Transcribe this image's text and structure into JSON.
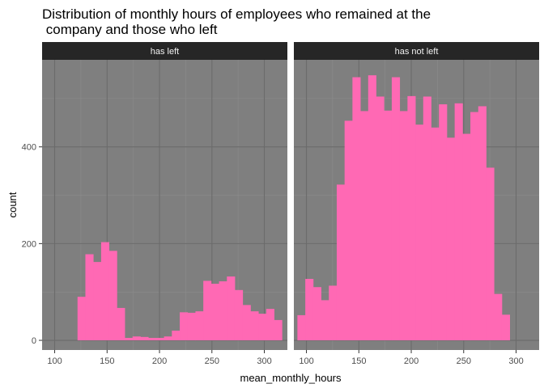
{
  "chart_data": {
    "type": "bar",
    "subtype": "faceted-histogram",
    "title": "Distribution of monthly hours of employees who remained at the\n company and those who left",
    "xlabel": "mean_monthly_hours",
    "ylabel": "count",
    "xlim": [
      88,
      322
    ],
    "ylim": [
      -20,
      580
    ],
    "x_ticks": [
      100,
      150,
      200,
      250,
      300
    ],
    "y_ticks": [
      0,
      200,
      400
    ],
    "grid": true,
    "bar_color": "#ff69b4",
    "panel_background": "#7f7f7f",
    "strip_background": "#262626",
    "facets": [
      {
        "label": "has left",
        "x_start": 121.8,
        "bin_width": 7.5,
        "values": [
          90,
          178,
          162,
          203,
          185,
          67,
          5,
          8,
          7,
          5,
          5,
          8,
          20,
          58,
          57,
          60,
          123,
          117,
          122,
          132,
          104,
          73,
          60,
          55,
          65,
          42
        ]
      },
      {
        "label": "has not left",
        "x_start": 91.4,
        "bin_width": 7.5,
        "values": [
          52,
          127,
          110,
          83,
          113,
          322,
          454,
          544,
          474,
          548,
          504,
          475,
          544,
          474,
          505,
          446,
          504,
          440,
          488,
          419,
          490,
          427,
          472,
          484,
          357,
          96,
          53
        ]
      }
    ]
  }
}
